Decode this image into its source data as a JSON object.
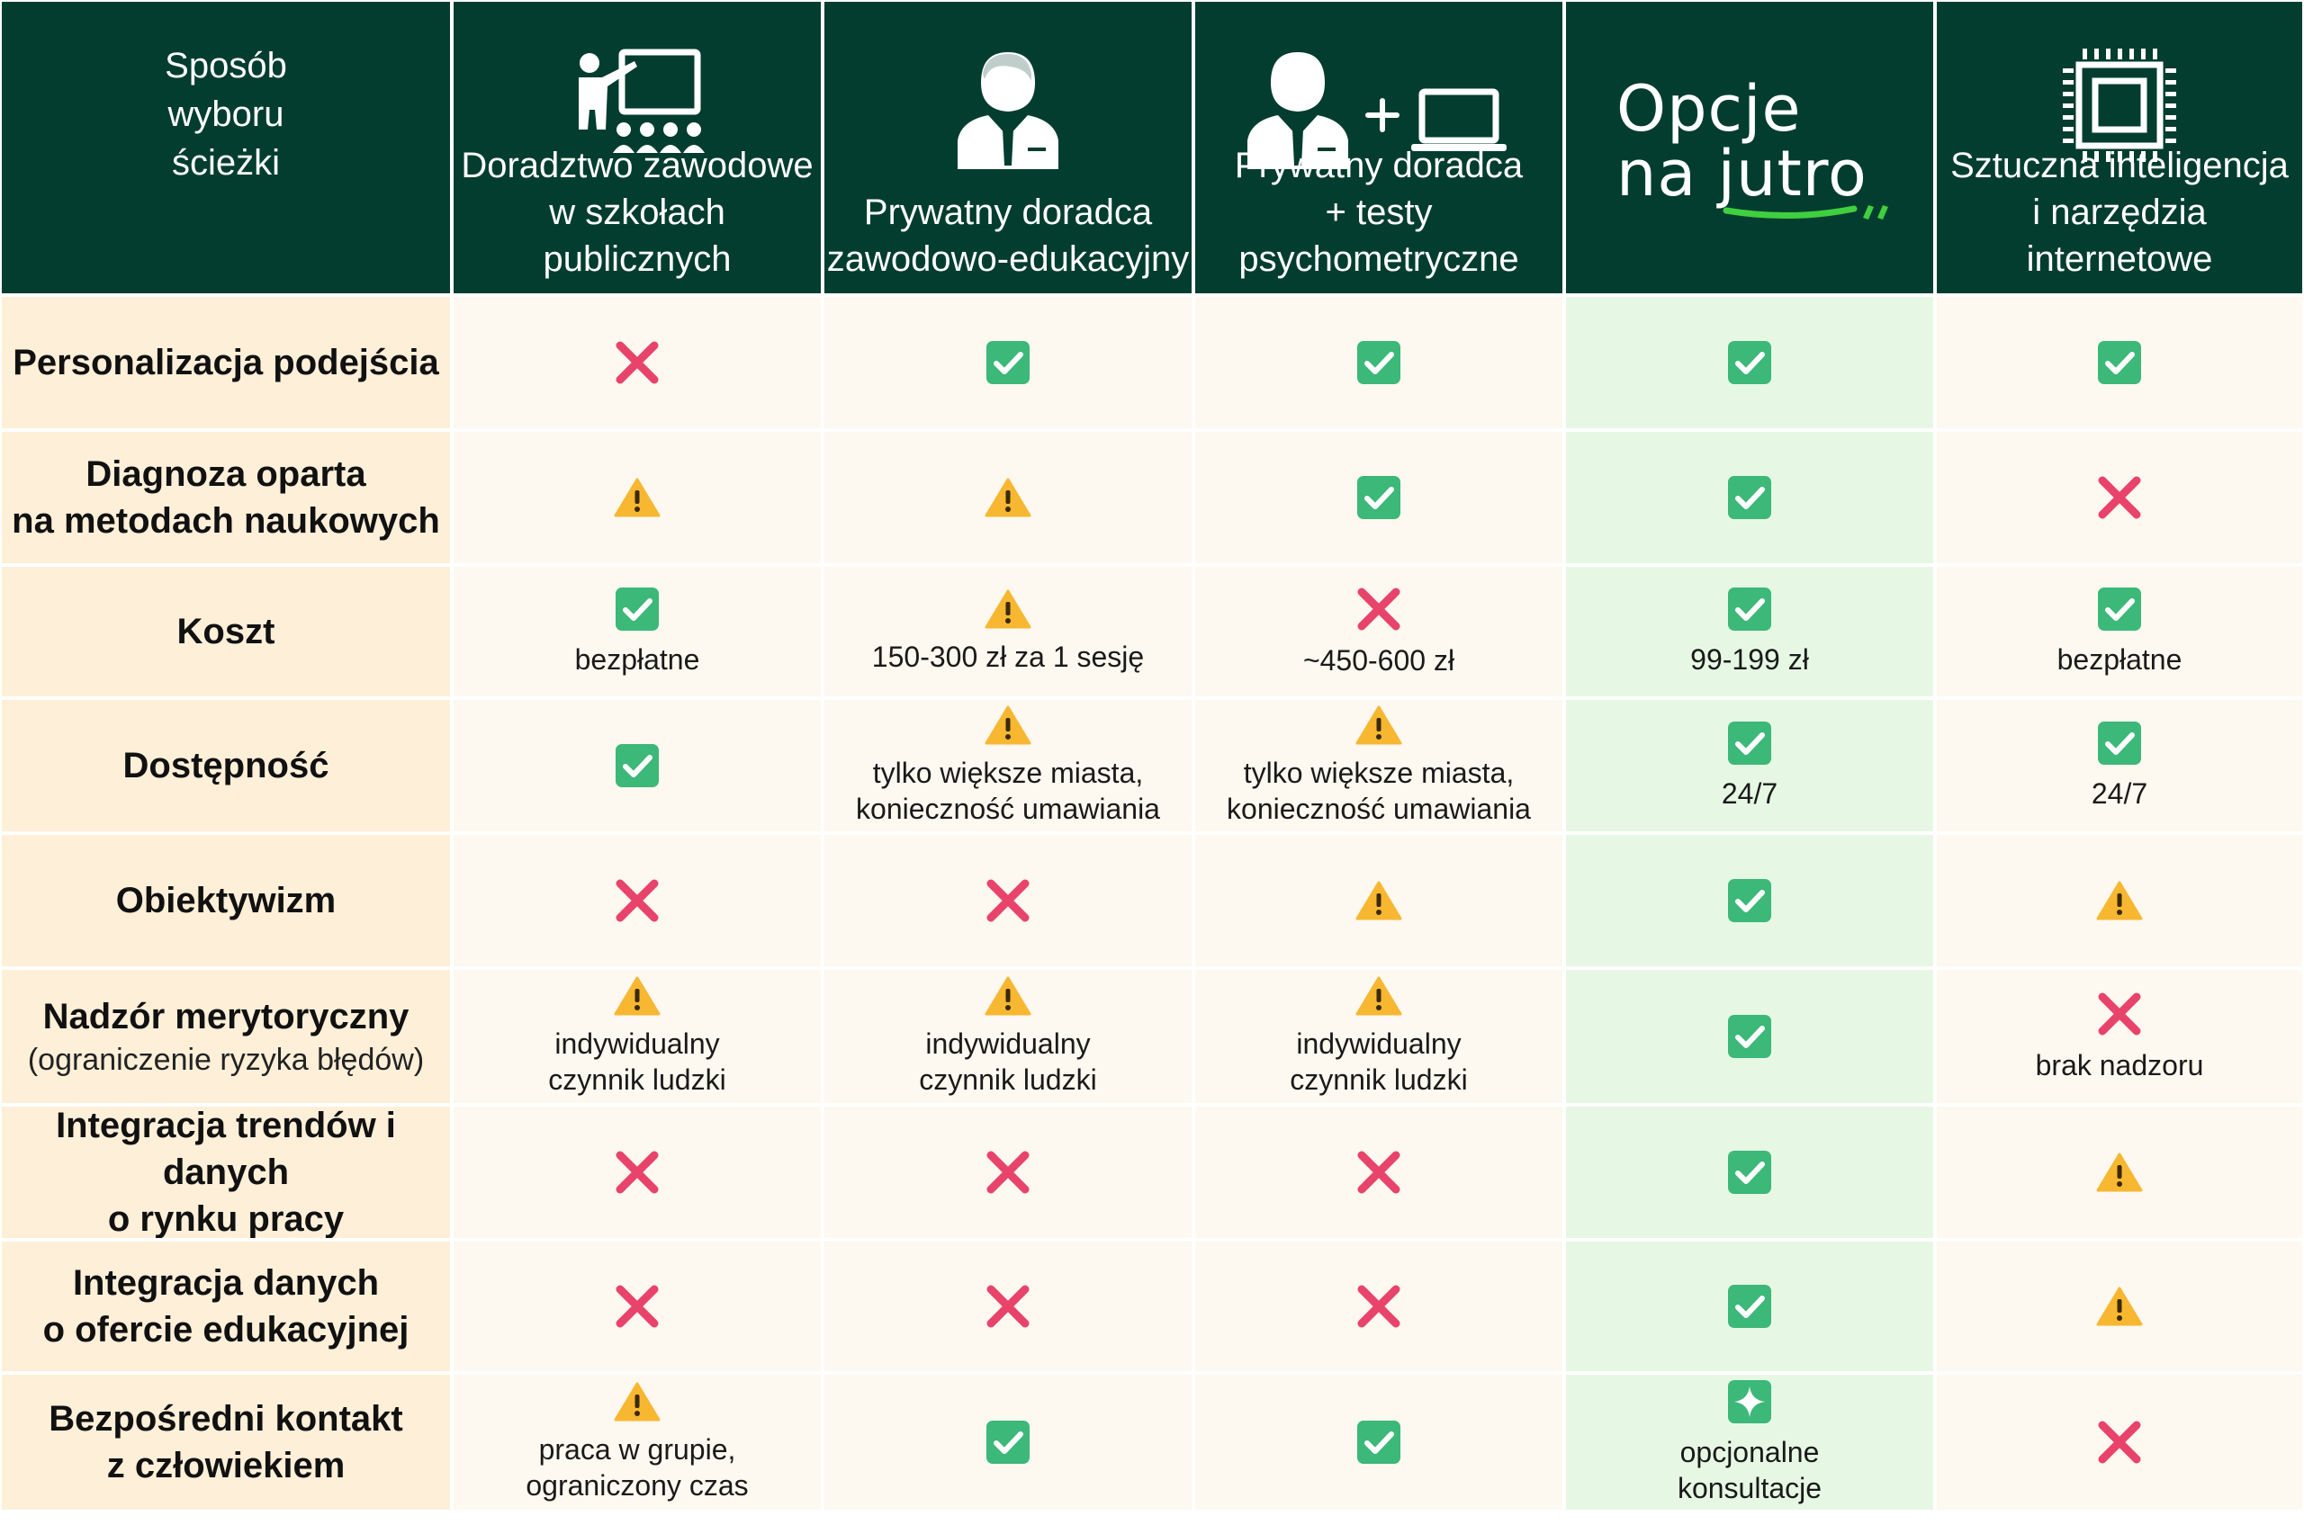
{
  "header": {
    "corner_label": [
      "Sposób",
      "wyboru",
      "ścieżki"
    ],
    "logo": {
      "line1": "Opcje",
      "line2": "na jutro",
      "accent_color": "#3fcf3f"
    },
    "columns": [
      {
        "title": [
          "Doradztwo zawodowe",
          "w szkołach publicznych"
        ],
        "icon": "teacher-classroom-icon"
      },
      {
        "title": [
          "Prywatny doradca",
          "zawodowo-edukacyjny"
        ],
        "icon": "advisor-icon"
      },
      {
        "title": [
          "Prywatny doradca",
          "+ testy psychometryczne"
        ],
        "icon": "advisor-laptop-icon"
      },
      {
        "title": [],
        "icon": "logo"
      },
      {
        "title": [
          "Sztuczna inteligencja",
          "i narzędzia internetowe"
        ],
        "icon": "cpu-chip-icon"
      }
    ]
  },
  "rows": [
    {
      "label": [
        "Personalizacja podejścia"
      ],
      "sub": "",
      "cells": [
        {
          "s": "x",
          "n": []
        },
        {
          "s": "check",
          "n": []
        },
        {
          "s": "check",
          "n": []
        },
        {
          "s": "check",
          "n": []
        },
        {
          "s": "check",
          "n": []
        }
      ]
    },
    {
      "label": [
        "Diagnoza oparta",
        "na metodach naukowych"
      ],
      "sub": "",
      "cells": [
        {
          "s": "warn",
          "n": []
        },
        {
          "s": "warn",
          "n": []
        },
        {
          "s": "check",
          "n": []
        },
        {
          "s": "check",
          "n": []
        },
        {
          "s": "x",
          "n": []
        }
      ]
    },
    {
      "label": [
        "Koszt"
      ],
      "sub": "",
      "cells": [
        {
          "s": "check",
          "n": [
            "bezpłatne"
          ]
        },
        {
          "s": "warn",
          "n": [
            "150-300 zł za 1 sesję"
          ]
        },
        {
          "s": "x",
          "n": [
            "~450-600 zł"
          ]
        },
        {
          "s": "check",
          "n": [
            "99-199 zł"
          ]
        },
        {
          "s": "check",
          "n": [
            "bezpłatne"
          ]
        }
      ]
    },
    {
      "label": [
        "Dostępność"
      ],
      "sub": "",
      "cells": [
        {
          "s": "check",
          "n": []
        },
        {
          "s": "warn",
          "n": [
            "tylko większe miasta,",
            "konieczność umawiania"
          ]
        },
        {
          "s": "warn",
          "n": [
            "tylko większe miasta,",
            "konieczność umawiania"
          ]
        },
        {
          "s": "check",
          "n": [
            "24/7"
          ]
        },
        {
          "s": "check",
          "n": [
            "24/7"
          ]
        }
      ]
    },
    {
      "label": [
        "Obiektywizm"
      ],
      "sub": "",
      "cells": [
        {
          "s": "x",
          "n": []
        },
        {
          "s": "x",
          "n": []
        },
        {
          "s": "warn",
          "n": []
        },
        {
          "s": "check",
          "n": []
        },
        {
          "s": "warn",
          "n": []
        }
      ]
    },
    {
      "label": [
        "Nadzór merytoryczny"
      ],
      "sub": "(ograniczenie ryzyka błędów)",
      "cells": [
        {
          "s": "warn",
          "n": [
            "indywidualny",
            "czynnik ludzki"
          ]
        },
        {
          "s": "warn",
          "n": [
            "indywidualny",
            "czynnik ludzki"
          ]
        },
        {
          "s": "warn",
          "n": [
            "indywidualny",
            "czynnik ludzki"
          ]
        },
        {
          "s": "check",
          "n": []
        },
        {
          "s": "x",
          "n": [
            "brak nadzoru"
          ]
        }
      ]
    },
    {
      "label": [
        "Integracja trendów i danych",
        "o rynku pracy"
      ],
      "sub": "",
      "cells": [
        {
          "s": "x",
          "n": []
        },
        {
          "s": "x",
          "n": []
        },
        {
          "s": "x",
          "n": []
        },
        {
          "s": "check",
          "n": []
        },
        {
          "s": "warn",
          "n": []
        }
      ]
    },
    {
      "label": [
        "Integracja danych",
        "o ofercie edukacyjnej"
      ],
      "sub": "",
      "cells": [
        {
          "s": "x",
          "n": []
        },
        {
          "s": "x",
          "n": []
        },
        {
          "s": "x",
          "n": []
        },
        {
          "s": "check",
          "n": []
        },
        {
          "s": "warn",
          "n": []
        }
      ]
    },
    {
      "label": [
        "Bezpośredni kontakt",
        "z człowiekiem"
      ],
      "sub": "",
      "cells": [
        {
          "s": "warn",
          "n": [
            "praca w grupie,",
            "ograniczony czas"
          ]
        },
        {
          "s": "check",
          "n": []
        },
        {
          "s": "check",
          "n": []
        },
        {
          "s": "sparkle",
          "n": [
            "opcjonalne",
            "konsultacje"
          ]
        },
        {
          "s": "x",
          "n": []
        }
      ]
    }
  ],
  "colors": {
    "header_bg": "#033d2f",
    "label_bg": "#fdefd8",
    "cell_bg": "#fdf8f0",
    "highlight_bg": "#e6f8e4",
    "check": "#3cb878",
    "cross": "#e8436b",
    "warn": "#f7b731"
  }
}
